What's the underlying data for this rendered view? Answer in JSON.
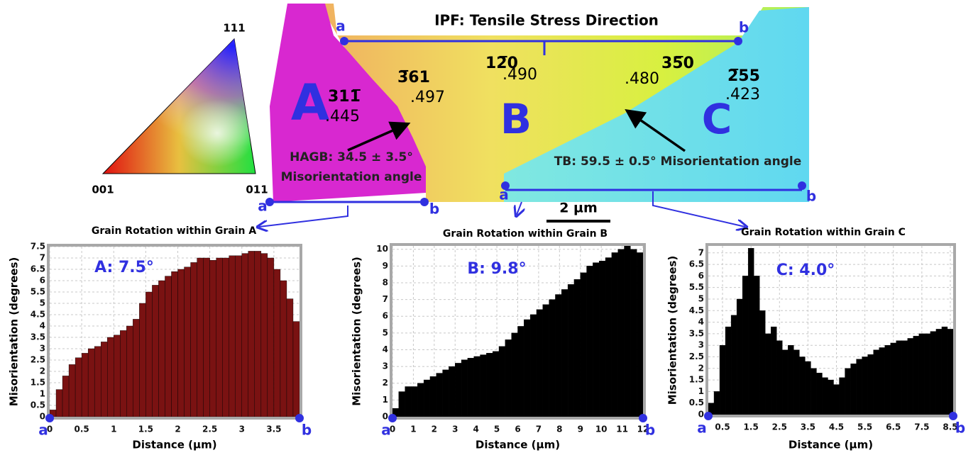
{
  "ipf_map": {
    "title": "IPF: Tensile Stress Direction",
    "triangle_labels": [
      "111",
      "001",
      "011"
    ],
    "grains": [
      "A",
      "B",
      "C"
    ],
    "orientations": [
      {
        "index": "311̅",
        "value": ".445"
      },
      {
        "index": "3̅61",
        "value": ".497"
      },
      {
        "index": "12̅0",
        "value": ".490"
      },
      {
        "index": "35̅0",
        "value": ".480"
      },
      {
        "index": "2̅55",
        "value": ".423"
      }
    ],
    "boundaries": [
      {
        "label": "HAGB: 34.5 ± 3.5°",
        "line2": "Misorientation angle"
      },
      {
        "label": "TB: 59.5 ± 0.5° Misorientation angle"
      }
    ],
    "scale_bar": "2 µm",
    "line_ends": [
      "a",
      "b"
    ]
  },
  "chart_data": [
    {
      "type": "histogram",
      "title": "Grain Rotation within Grain A",
      "annotation": "A: 7.5°",
      "x_label": "Distance (µm)",
      "y_label": "Misorientation (degrees)",
      "color": "#7a1212",
      "grid": true,
      "bins": [
        0,
        0.1,
        0.2,
        0.3,
        0.4,
        0.5,
        0.6,
        0.7,
        0.8,
        0.9,
        1.0,
        1.1,
        1.2,
        1.3,
        1.4,
        1.5,
        1.6,
        1.7,
        1.8,
        1.9,
        2.0,
        2.1,
        2.2,
        2.3,
        2.4,
        2.5,
        2.6,
        2.7,
        2.8,
        2.9,
        3.0,
        3.1,
        3.2,
        3.3,
        3.4,
        3.5,
        3.6,
        3.7,
        3.8,
        3.9
      ],
      "values": [
        0.3,
        1.2,
        1.8,
        2.3,
        2.6,
        2.8,
        3.0,
        3.1,
        3.3,
        3.5,
        3.6,
        3.8,
        4.0,
        4.3,
        5.0,
        5.5,
        5.8,
        6.0,
        6.2,
        6.4,
        6.5,
        6.6,
        6.8,
        7.0,
        7.0,
        6.9,
        7.0,
        7.0,
        7.1,
        7.1,
        7.2,
        7.3,
        7.3,
        7.2,
        7.0,
        6.5,
        6.0,
        5.2,
        4.2
      ],
      "xlim": [
        0,
        3.9
      ],
      "xticks": [
        0,
        0.5,
        1,
        1.5,
        2,
        2.5,
        3,
        3.5
      ],
      "ylim": [
        0,
        7.5
      ],
      "yticks": [
        0,
        0.5,
        1,
        1.5,
        2,
        2.5,
        3,
        3.5,
        4,
        4.5,
        5,
        5.5,
        6,
        6.5,
        7,
        7.5
      ]
    },
    {
      "type": "histogram",
      "title": "Grain Rotation within Grain B",
      "annotation": "B: 9.8°",
      "x_label": "Distance (µm)",
      "y_label": "Misorientation (degrees)",
      "color": "#000000",
      "grid": true,
      "bins": [
        0,
        0.3,
        0.6,
        0.9,
        1.2,
        1.5,
        1.8,
        2.1,
        2.4,
        2.7,
        3.0,
        3.3,
        3.6,
        3.9,
        4.2,
        4.5,
        4.8,
        5.1,
        5.4,
        5.7,
        6.0,
        6.3,
        6.6,
        6.9,
        7.2,
        7.5,
        7.8,
        8.1,
        8.4,
        8.7,
        9.0,
        9.3,
        9.6,
        9.9,
        10.2,
        10.5,
        10.8,
        11.1,
        11.4,
        11.7,
        12.0
      ],
      "values": [
        0.5,
        1.5,
        1.8,
        1.8,
        2.0,
        2.2,
        2.4,
        2.6,
        2.8,
        3.0,
        3.2,
        3.4,
        3.5,
        3.6,
        3.7,
        3.8,
        3.9,
        4.2,
        4.6,
        5.0,
        5.4,
        5.8,
        6.1,
        6.4,
        6.7,
        7.0,
        7.3,
        7.6,
        7.9,
        8.2,
        8.6,
        9.0,
        9.2,
        9.3,
        9.5,
        9.8,
        10.0,
        10.2,
        10.0,
        9.8
      ],
      "xlim": [
        0,
        12
      ],
      "xticks": [
        0,
        1,
        2,
        3,
        4,
        5,
        6,
        7,
        8,
        9,
        10,
        11,
        12
      ],
      "ylim": [
        0,
        10.2
      ],
      "yticks": [
        0,
        1,
        2,
        3,
        4,
        5,
        6,
        7,
        8,
        9,
        10
      ]
    },
    {
      "type": "histogram",
      "title": "Grain Rotation within Grain C",
      "annotation": "C: 4.0°",
      "x_label": "Distance (µm)",
      "y_label": "Misorientation (degrees)",
      "color": "#000000",
      "grid": true,
      "bins": [
        0,
        0.2,
        0.4,
        0.6,
        0.8,
        1.0,
        1.2,
        1.4,
        1.6,
        1.8,
        2.0,
        2.2,
        2.4,
        2.6,
        2.8,
        3.0,
        3.2,
        3.4,
        3.6,
        3.8,
        4.0,
        4.2,
        4.4,
        4.6,
        4.8,
        5.0,
        5.2,
        5.4,
        5.6,
        5.8,
        6.0,
        6.2,
        6.4,
        6.6,
        6.8,
        7.0,
        7.2,
        7.4,
        7.6,
        7.8,
        8.0,
        8.2,
        8.4,
        8.6
      ],
      "values": [
        0.5,
        1.0,
        3.0,
        3.8,
        4.3,
        5.0,
        6.0,
        7.2,
        6.0,
        4.5,
        3.5,
        3.8,
        3.2,
        2.8,
        3.0,
        2.8,
        2.5,
        2.3,
        2.0,
        1.8,
        1.6,
        1.5,
        1.3,
        1.6,
        2.0,
        2.2,
        2.4,
        2.5,
        2.6,
        2.8,
        2.9,
        3.0,
        3.1,
        3.2,
        3.2,
        3.3,
        3.4,
        3.5,
        3.5,
        3.6,
        3.7,
        3.8,
        3.7
      ],
      "xlim": [
        0,
        8.6
      ],
      "xticks": [
        0.5,
        1.5,
        2.5,
        3.5,
        4.5,
        5.5,
        6.5,
        7.5,
        8.5
      ],
      "ylim": [
        0,
        7.3
      ],
      "yticks": [
        0,
        0.5,
        1,
        1.5,
        2,
        2.5,
        3,
        3.5,
        4,
        4.5,
        5,
        5.5,
        6,
        6.5,
        7
      ]
    }
  ]
}
